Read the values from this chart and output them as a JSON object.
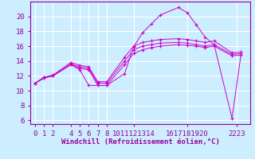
{
  "xlabel": "Windchill (Refroidissement éolien,°C)",
  "background_color": "#cceeff",
  "grid_color": "#ffffff",
  "line_color": "#cc00cc",
  "marker": "+",
  "xlim": [
    -0.5,
    24
  ],
  "ylim": [
    5.5,
    22.0
  ],
  "yticks": [
    6,
    8,
    10,
    12,
    14,
    16,
    18,
    20
  ],
  "xtick_labels": [
    "0",
    "1",
    "2",
    "",
    "4",
    "5",
    "6",
    "7",
    "8",
    "",
    "1011121314",
    "",
    "",
    "",
    "",
    "1617181920",
    "",
    "",
    "",
    "",
    "2223"
  ],
  "xtick_positions": [
    0,
    1,
    2,
    3,
    4,
    5,
    6,
    7,
    8,
    9,
    11,
    12,
    13,
    14,
    15,
    17,
    18,
    19,
    20,
    21,
    22.5
  ],
  "real_xticks": [
    0,
    1,
    2,
    4,
    5,
    6,
    7,
    8,
    11,
    17,
    22.5
  ],
  "real_xtick_labels": [
    "0",
    "1",
    "2",
    "4",
    "5",
    "6",
    "7",
    "8",
    "1011121314",
    "1617181920",
    "2223"
  ],
  "lines": [
    {
      "x": [
        0,
        1,
        2,
        4,
        5,
        6,
        7,
        8,
        10,
        11,
        12,
        13,
        14,
        16,
        17,
        18,
        19,
        20,
        22,
        23
      ],
      "y": [
        11,
        11.7,
        12,
        13.5,
        12.8,
        10.7,
        10.7,
        10.7,
        12.3,
        15.9,
        17.8,
        19.0,
        20.2,
        21.2,
        20.5,
        18.9,
        17.2,
        16.2,
        6.3,
        14.8
      ]
    },
    {
      "x": [
        0,
        1,
        2,
        4,
        5,
        6,
        7,
        8,
        10,
        11,
        12,
        13,
        14,
        16,
        17,
        18,
        19,
        20,
        22,
        23
      ],
      "y": [
        11,
        11.7,
        12,
        13.5,
        13.0,
        12.8,
        10.7,
        10.7,
        13.5,
        15.0,
        15.5,
        15.8,
        16.0,
        16.2,
        16.1,
        16.0,
        15.8,
        16.0,
        14.7,
        14.8
      ]
    },
    {
      "x": [
        0,
        1,
        2,
        4,
        5,
        6,
        7,
        8,
        10,
        11,
        12,
        13,
        14,
        16,
        17,
        18,
        19,
        20,
        22,
        23
      ],
      "y": [
        11,
        11.8,
        12,
        13.6,
        13.2,
        13.0,
        11.0,
        11.0,
        14.0,
        15.5,
        16.0,
        16.2,
        16.4,
        16.5,
        16.4,
        16.2,
        16.0,
        16.2,
        14.9,
        15.0
      ]
    },
    {
      "x": [
        0,
        1,
        2,
        4,
        5,
        6,
        7,
        8,
        10,
        11,
        12,
        13,
        14,
        16,
        17,
        18,
        19,
        20,
        22,
        23
      ],
      "y": [
        11,
        11.8,
        12.1,
        13.8,
        13.4,
        13.2,
        11.2,
        11.2,
        14.5,
        16.0,
        16.5,
        16.7,
        16.9,
        17.0,
        16.9,
        16.7,
        16.5,
        16.7,
        15.1,
        15.2
      ]
    }
  ],
  "xlabel_fontsize": 6.5,
  "tick_fontsize": 6.5
}
